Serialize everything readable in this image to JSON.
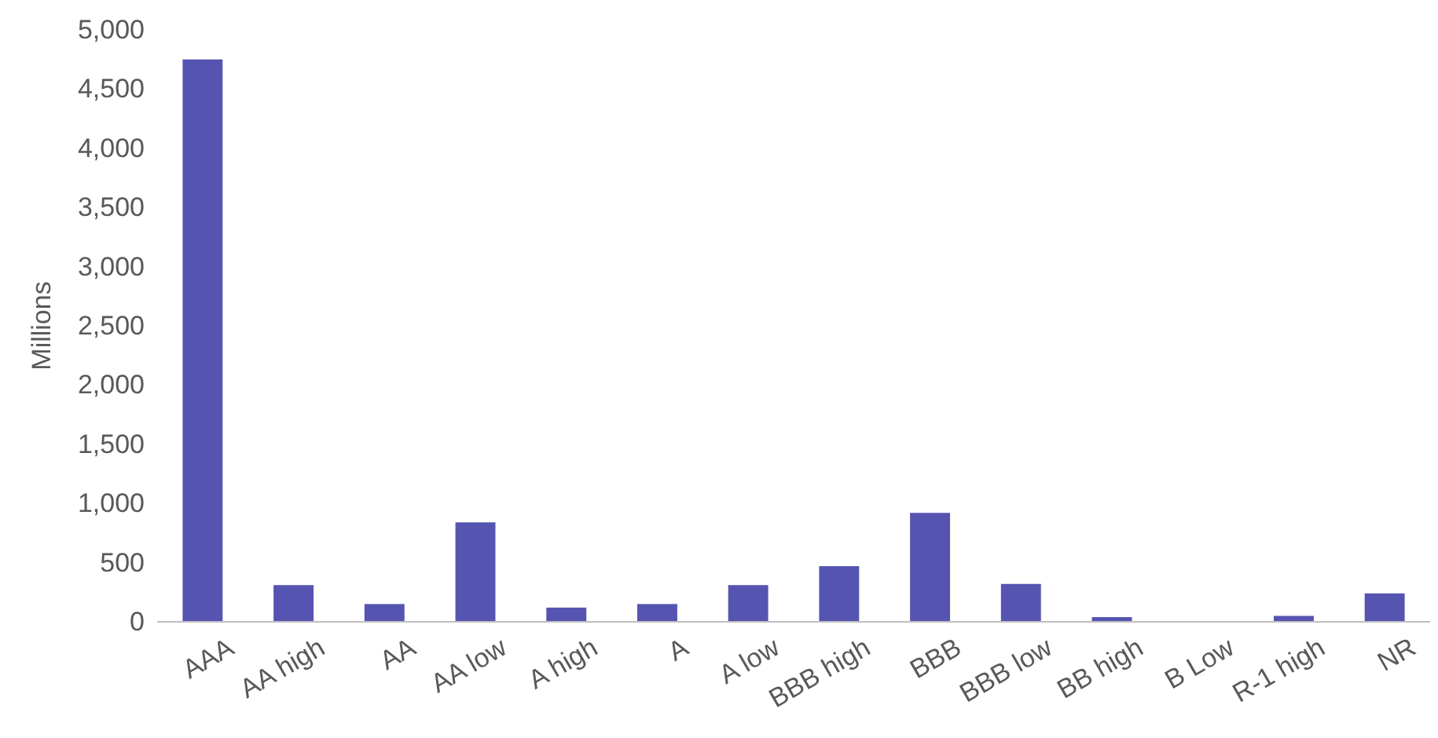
{
  "chart_data": {
    "type": "bar",
    "ylabel": "Millions",
    "categories": [
      "AAA",
      "AA high",
      "AA",
      "AA low",
      "A high",
      "A",
      "A low",
      "BBB high",
      "BBB",
      "BBB low",
      "BB high",
      "B Low",
      "R-1 high",
      "NR"
    ],
    "values": [
      4750,
      310,
      150,
      840,
      120,
      150,
      310,
      470,
      920,
      320,
      40,
      null,
      50,
      240
    ],
    "color": "#5654b1",
    "ylim": [
      0,
      5000
    ],
    "yticks": [
      {
        "value": 0,
        "label": "0"
      },
      {
        "value": 500,
        "label": "500"
      },
      {
        "value": 1000,
        "label": "1,000"
      },
      {
        "value": 1500,
        "label": "1,500"
      },
      {
        "value": 2000,
        "label": "2,000"
      },
      {
        "value": 2500,
        "label": "2,500"
      },
      {
        "value": 3000,
        "label": "3,000"
      },
      {
        "value": 3500,
        "label": "3,500"
      },
      {
        "value": 4000,
        "label": "4,000"
      },
      {
        "value": 4500,
        "label": "4,500"
      },
      {
        "value": 5000,
        "label": "5,000"
      }
    ],
    "grid": false
  }
}
